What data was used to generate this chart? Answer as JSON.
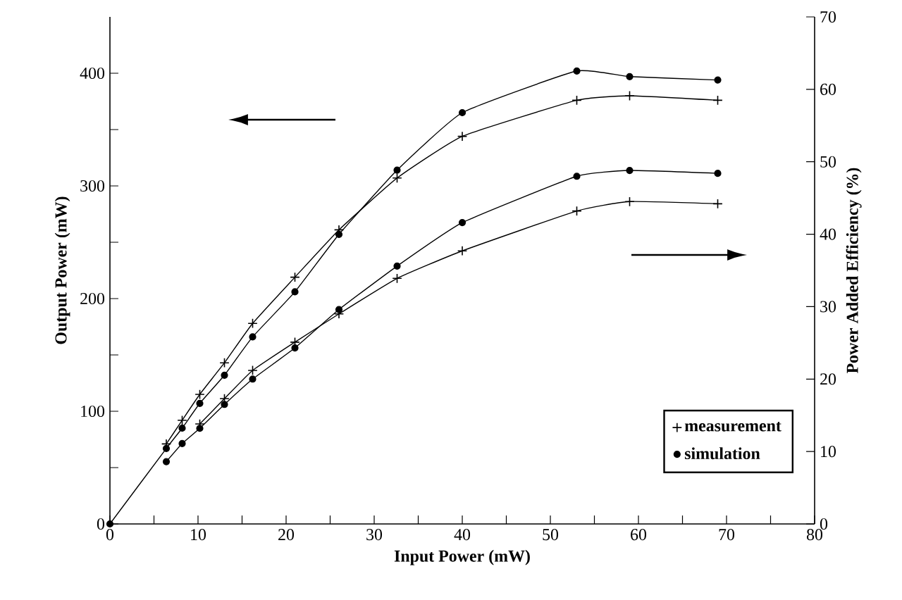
{
  "chart_data": {
    "type": "line",
    "xlabel": "Input Power (mW)",
    "ylabel": "Output Power (mW)",
    "y2label": "Power Added Efficiency (%)",
    "x": [
      0,
      6.4,
      8.2,
      10.2,
      13,
      16.2,
      21,
      26,
      32.6,
      40,
      53,
      59,
      69
    ],
    "xlim": [
      0,
      80
    ],
    "ylim": [
      0,
      450
    ],
    "y2lim": [
      0,
      70
    ],
    "xticks": [
      0,
      {
        "value": 5,
        "label": null
      },
      10,
      {
        "value": 15,
        "label": null
      },
      20,
      {
        "value": 25,
        "label": null
      },
      30,
      {
        "value": 35,
        "label": null
      },
      40,
      {
        "value": 45,
        "label": null
      },
      50,
      {
        "value": 55,
        "label": null
      },
      60,
      {
        "value": 65,
        "label": null
      },
      70,
      {
        "value": 75,
        "label": null
      },
      80
    ],
    "yticks": [
      0,
      {
        "value": 50,
        "label": null
      },
      100,
      {
        "value": 150,
        "label": null
      },
      200,
      {
        "value": 250,
        "label": null
      },
      300,
      {
        "value": 350,
        "label": null
      },
      400
    ],
    "y2ticks": [
      0,
      10,
      20,
      30,
      40,
      50,
      60,
      70
    ],
    "legend": "bottom right",
    "series": [
      {
        "name": "measurement",
        "color": "#000000",
        "marker": "cross",
        "values": [
          null,
          71,
          92,
          115,
          143,
          178,
          219,
          261,
          307,
          344,
          376,
          380,
          376
        ]
      },
      {
        "name": "simulation",
        "color": "#000000",
        "marker": "circle",
        "values": [
          0,
          67,
          85,
          107,
          132,
          166,
          206,
          257,
          314,
          365,
          402,
          397,
          394
        ]
      },
      {
        "color": "#000000",
        "marker": "cross",
        "axis": "y2",
        "values": [
          null,
          null,
          null,
          13.8,
          17.3,
          21.2,
          25.1,
          29.0,
          33.9,
          37.7,
          43.2,
          44.5,
          44.2
        ]
      },
      {
        "color": "#000000",
        "marker": "circle",
        "axis": "y2",
        "values": [
          null,
          8.6,
          11.1,
          13.2,
          16.5,
          20.0,
          24.3,
          29.6,
          35.6,
          41.6,
          48.0,
          48.8,
          48.4
        ]
      }
    ]
  }
}
